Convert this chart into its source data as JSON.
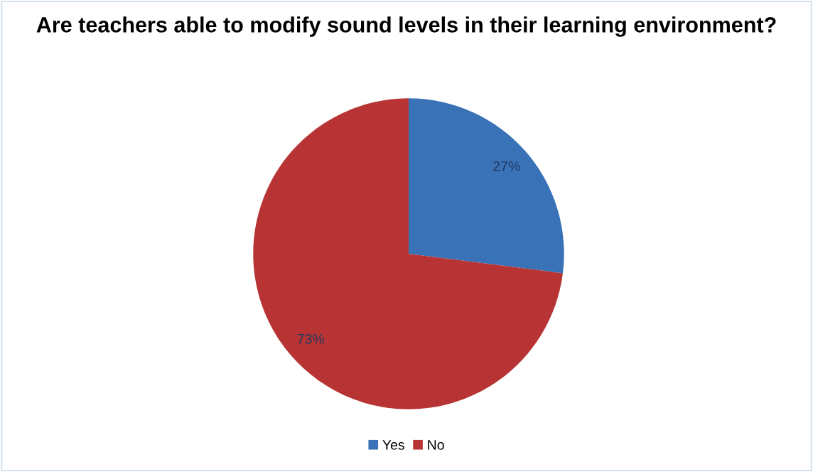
{
  "chart_data": {
    "type": "pie",
    "title": "Are teachers able to modify sound levels in their learning environment?",
    "categories": [
      "Yes",
      "No"
    ],
    "values": [
      27,
      73
    ],
    "colors": [
      "#3a72b8",
      "#b83434"
    ],
    "value_labels": [
      "27%",
      "73%"
    ],
    "legend": "bottom"
  }
}
